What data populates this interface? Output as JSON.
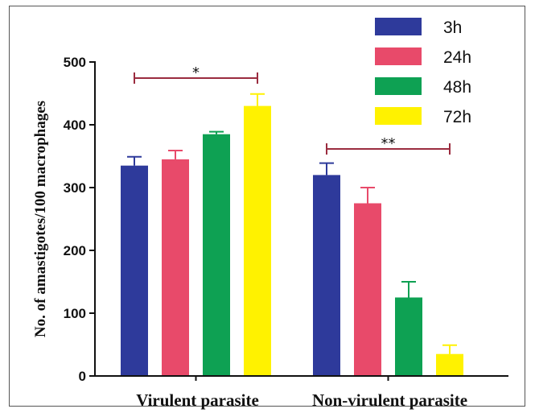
{
  "chart_data": {
    "type": "bar",
    "categories": [
      "Virulent parasite",
      "Non-virulent parasite"
    ],
    "series": [
      {
        "name": "3h",
        "values": [
          335,
          320
        ],
        "errors": [
          14,
          19
        ]
      },
      {
        "name": "24h",
        "values": [
          345,
          275
        ],
        "errors": [
          14,
          25
        ]
      },
      {
        "name": "48h",
        "values": [
          385,
          125
        ],
        "errors": [
          4,
          25
        ]
      },
      {
        "name": "72h",
        "values": [
          430,
          35
        ],
        "errors": [
          19,
          14
        ]
      }
    ],
    "title": "",
    "xlabel": "",
    "ylabel": "No. of amastigotes/100 macrophages",
    "ylim": [
      0,
      500
    ],
    "yticks": [
      0,
      100,
      200,
      300,
      400,
      500
    ],
    "grid": false,
    "legend_position": "top-right",
    "colors": {
      "3h": "#2e3a9b",
      "24h": "#e84a6a",
      "48h": "#0ea153",
      "72h": "#fff200",
      "significance": "#9b2c3f",
      "axis": "#111111"
    },
    "annotations": [
      {
        "category": "Virulent parasite",
        "text": "*"
      },
      {
        "category": "Non-virulent parasite",
        "text": "**"
      }
    ]
  }
}
